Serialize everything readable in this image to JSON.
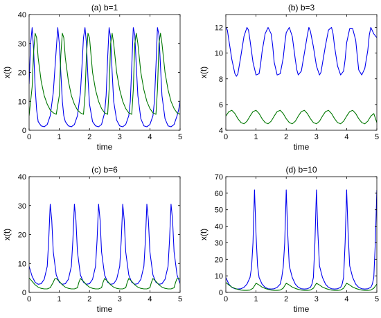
{
  "chart_data": [
    {
      "type": "line",
      "title": "(a) b=1",
      "xlabel": "time",
      "ylabel": "x(t)",
      "xlim": [
        0,
        5
      ],
      "ylim": [
        0,
        40
      ],
      "xticks": [
        0,
        1,
        2,
        3,
        4,
        5
      ],
      "yticks": [
        0,
        10,
        20,
        30,
        40
      ],
      "series": [
        {
          "color": "#0000ee",
          "x": [
            0,
            0.05,
            0.1,
            0.15,
            0.2,
            0.25,
            0.3,
            0.4,
            0.5,
            0.6,
            0.7,
            0.8,
            0.9,
            0.95,
            1.0,
            1.05,
            1.1,
            1.15,
            1.2,
            1.3,
            1.4,
            1.5,
            1.6,
            1.7,
            1.75,
            1.8,
            1.85,
            1.9,
            1.95,
            2.0,
            2.1,
            2.2,
            2.3,
            2.4,
            2.5,
            2.55,
            2.6,
            2.65,
            2.7,
            2.75,
            2.8,
            2.9,
            3.0,
            3.1,
            3.2,
            3.3,
            3.35,
            3.4,
            3.45,
            3.5,
            3.55,
            3.6,
            3.7,
            3.8,
            3.9,
            4.0,
            4.1,
            4.15,
            4.2,
            4.25,
            4.3,
            4.35,
            4.4,
            4.5,
            4.6,
            4.7,
            4.8,
            4.9,
            4.95,
            5.0
          ],
          "y": [
            16,
            30,
            35.5,
            28,
            15,
            7,
            3,
            1.5,
            1.2,
            2,
            5,
            13,
            28,
            35.5,
            30,
            20,
            10,
            5,
            3,
            1.5,
            1.2,
            2,
            5,
            13,
            22,
            32,
            35.5,
            30,
            18,
            9,
            3,
            1.5,
            1.2,
            2,
            6,
            12,
            25,
            35.5,
            32,
            20,
            10,
            3.5,
            1.5,
            1.2,
            2,
            5,
            10,
            22,
            35.5,
            33,
            22,
            12,
            4,
            1.5,
            1.2,
            2,
            5,
            10,
            22,
            35.5,
            33,
            22,
            12,
            4,
            1.5,
            1.2,
            2,
            5,
            7,
            10
          ]
        },
        {
          "color": "#007700",
          "x": [
            0,
            0.1,
            0.15,
            0.2,
            0.25,
            0.3,
            0.4,
            0.5,
            0.6,
            0.7,
            0.8,
            0.9,
            1.0,
            1.05,
            1.1,
            1.15,
            1.2,
            1.3,
            1.4,
            1.5,
            1.6,
            1.7,
            1.8,
            1.85,
            1.9,
            1.95,
            2.0,
            2.1,
            2.2,
            2.3,
            2.4,
            2.5,
            2.6,
            2.65,
            2.7,
            2.75,
            2.8,
            2.9,
            3.0,
            3.1,
            3.2,
            3.3,
            3.4,
            3.45,
            3.5,
            3.55,
            3.6,
            3.7,
            3.8,
            3.9,
            4.0,
            4.1,
            4.2,
            4.25,
            4.3,
            4.35,
            4.4,
            4.5,
            4.6,
            4.7,
            4.8,
            4.9,
            5.0
          ],
          "y": [
            5,
            15,
            27,
            33.5,
            32,
            25,
            17,
            12,
            9,
            7,
            6,
            5.5,
            12,
            26,
            33.5,
            32,
            25,
            17,
            12,
            9,
            7,
            6,
            5.5,
            12,
            26,
            33.5,
            32,
            20,
            14,
            10,
            7.5,
            6,
            5.5,
            14,
            30,
            33.5,
            30,
            20,
            14,
            10,
            7.5,
            6,
            5.5,
            14,
            30,
            33.5,
            30,
            20,
            14,
            10,
            7.5,
            6,
            5.5,
            14,
            30,
            33.5,
            30,
            20,
            14,
            10,
            7.5,
            6,
            5.5
          ]
        }
      ]
    },
    {
      "type": "line",
      "title": "(b) b=3",
      "xlabel": "time",
      "ylabel": "x(t)",
      "xlim": [
        0,
        5
      ],
      "ylim": [
        4,
        13
      ],
      "xticks": [
        0,
        1,
        2,
        3,
        4,
        5
      ],
      "yticks": [
        4,
        6,
        8,
        10,
        12
      ],
      "series": [
        {
          "color": "#0000ee",
          "x": [
            0,
            0.05,
            0.1,
            0.2,
            0.3,
            0.35,
            0.4,
            0.5,
            0.6,
            0.7,
            0.75,
            0.8,
            0.9,
            1.0,
            1.1,
            1.15,
            1.2,
            1.3,
            1.4,
            1.5,
            1.55,
            1.6,
            1.7,
            1.8,
            1.9,
            1.95,
            2.0,
            2.1,
            2.2,
            2.3,
            2.35,
            2.4,
            2.5,
            2.6,
            2.7,
            2.75,
            2.8,
            2.9,
            3.0,
            3.1,
            3.15,
            3.2,
            3.3,
            3.4,
            3.5,
            3.55,
            3.6,
            3.7,
            3.8,
            3.9,
            3.95,
            4.0,
            4.1,
            4.2,
            4.3,
            4.35,
            4.4,
            4.5,
            4.6,
            4.7,
            4.75,
            4.8,
            4.9,
            5.0
          ],
          "y": [
            12,
            11.8,
            11,
            9.5,
            8.4,
            8.2,
            8.4,
            9.8,
            11.3,
            12,
            11.8,
            11,
            9.3,
            8.3,
            8.4,
            9.1,
            10.1,
            11.5,
            12,
            11.5,
            10.6,
            9.3,
            8.3,
            8.4,
            9.6,
            10.7,
            11.6,
            12,
            11.3,
            9.5,
            8.7,
            8.3,
            8.6,
            10,
            11.4,
            12,
            11.7,
            10.5,
            9,
            8.3,
            8.5,
            9.2,
            10.6,
            11.8,
            12,
            11.5,
            10.5,
            9,
            8.3,
            8.6,
            9.5,
            10.8,
            11.9,
            11.9,
            11,
            9.8,
            8.7,
            8.3,
            8.8,
            10.2,
            11.4,
            12,
            11.5,
            11.2
          ]
        },
        {
          "color": "#007700",
          "x": [
            0,
            0.1,
            0.2,
            0.3,
            0.4,
            0.5,
            0.6,
            0.7,
            0.8,
            0.9,
            1.0,
            1.1,
            1.2,
            1.3,
            1.4,
            1.5,
            1.6,
            1.7,
            1.8,
            1.9,
            2.0,
            2.1,
            2.2,
            2.3,
            2.4,
            2.5,
            2.6,
            2.7,
            2.8,
            2.9,
            3.0,
            3.1,
            3.2,
            3.3,
            3.4,
            3.5,
            3.6,
            3.7,
            3.8,
            3.9,
            4.0,
            4.1,
            4.2,
            4.3,
            4.4,
            4.5,
            4.6,
            4.7,
            4.8,
            4.9,
            5.0
          ],
          "y": [
            5.1,
            5.45,
            5.55,
            5.3,
            4.9,
            4.6,
            4.5,
            4.7,
            5.1,
            5.45,
            5.55,
            5.3,
            4.9,
            4.6,
            4.5,
            4.7,
            5.1,
            5.45,
            5.55,
            5.3,
            4.9,
            4.6,
            4.5,
            4.7,
            5.1,
            5.45,
            5.55,
            5.3,
            4.9,
            4.6,
            4.5,
            4.7,
            5.1,
            5.45,
            5.55,
            5.3,
            4.9,
            4.6,
            4.5,
            4.7,
            5.1,
            5.45,
            5.55,
            5.3,
            4.9,
            4.6,
            4.5,
            4.7,
            5.1,
            5.3,
            4.6
          ]
        }
      ]
    },
    {
      "type": "line",
      "title": "(c) b=6",
      "xlabel": "time",
      "ylabel": "x(t)",
      "xlim": [
        0,
        5
      ],
      "ylim": [
        0,
        40
      ],
      "xticks": [
        0,
        1,
        2,
        3,
        4,
        5
      ],
      "yticks": [
        0,
        10,
        20,
        30,
        40
      ],
      "series": [
        {
          "color": "#0000ee",
          "x": [
            0,
            0.1,
            0.2,
            0.3,
            0.4,
            0.5,
            0.6,
            0.65,
            0.7,
            0.75,
            0.8,
            0.9,
            1.0,
            1.1,
            1.2,
            1.3,
            1.4,
            1.45,
            1.5,
            1.55,
            1.6,
            1.7,
            1.8,
            1.9,
            2.0,
            2.1,
            2.2,
            2.25,
            2.3,
            2.35,
            2.4,
            2.5,
            2.6,
            2.7,
            2.8,
            2.9,
            3.0,
            3.05,
            3.1,
            3.15,
            3.2,
            3.3,
            3.4,
            3.5,
            3.6,
            3.7,
            3.8,
            3.85,
            3.9,
            3.95,
            4.0,
            4.1,
            4.2,
            4.3,
            4.4,
            4.5,
            4.6,
            4.65,
            4.7,
            4.75,
            4.8,
            4.9,
            5.0
          ],
          "y": [
            9,
            5.5,
            3.5,
            2.8,
            3,
            4.5,
            9,
            18,
            30.5,
            25,
            14,
            6,
            3.5,
            2.8,
            3,
            4.5,
            9,
            18,
            30.5,
            25,
            14,
            6,
            3.5,
            2.8,
            3,
            4.5,
            9,
            18,
            30.5,
            25,
            14,
            6,
            3.5,
            2.8,
            3,
            4.5,
            9,
            18,
            30.5,
            25,
            14,
            6,
            3.5,
            2.8,
            3,
            4.5,
            9,
            18,
            30.5,
            25,
            14,
            6,
            3.5,
            2.8,
            3,
            4.5,
            9,
            18,
            30.5,
            25,
            14,
            6,
            3
          ]
        },
        {
          "color": "#007700",
          "x": [
            0,
            0.1,
            0.2,
            0.3,
            0.4,
            0.5,
            0.6,
            0.7,
            0.8,
            0.85,
            0.9,
            1.0,
            1.1,
            1.2,
            1.3,
            1.4,
            1.5,
            1.6,
            1.65,
            1.7,
            1.8,
            1.9,
            2.0,
            2.1,
            2.2,
            2.3,
            2.4,
            2.45,
            2.5,
            2.6,
            2.7,
            2.8,
            2.9,
            3.0,
            3.1,
            3.2,
            3.25,
            3.3,
            3.4,
            3.5,
            3.6,
            3.7,
            3.8,
            3.9,
            4.0,
            4.05,
            4.1,
            4.2,
            4.3,
            4.4,
            4.5,
            4.6,
            4.7,
            4.8,
            4.85,
            4.9,
            5.0
          ],
          "y": [
            5,
            3.8,
            2.6,
            1.8,
            1.4,
            1.2,
            1.2,
            1.6,
            3.5,
            4.7,
            4.8,
            3.8,
            2.6,
            1.8,
            1.4,
            1.2,
            1.2,
            1.6,
            3.5,
            4.8,
            3.8,
            2.6,
            1.8,
            1.4,
            1.2,
            1.2,
            1.6,
            3.5,
            4.8,
            3.8,
            2.6,
            1.8,
            1.4,
            1.2,
            1.2,
            1.6,
            3.5,
            4.8,
            3.8,
            2.6,
            1.8,
            1.4,
            1.2,
            1.2,
            1.6,
            3.5,
            4.8,
            3.8,
            2.6,
            1.8,
            1.4,
            1.2,
            1.2,
            1.6,
            3.5,
            4.8,
            4.6
          ]
        }
      ]
    },
    {
      "type": "line",
      "title": "(d) b=10",
      "xlabel": "time",
      "ylabel": "x(t)",
      "xlim": [
        0,
        5
      ],
      "ylim": [
        0,
        70
      ],
      "xticks": [
        0,
        1,
        2,
        3,
        4,
        5
      ],
      "yticks": [
        0,
        10,
        20,
        30,
        40,
        50,
        60,
        70
      ],
      "series": [
        {
          "color": "#0000ee",
          "x": [
            0,
            0.1,
            0.2,
            0.3,
            0.4,
            0.5,
            0.6,
            0.7,
            0.8,
            0.85,
            0.9,
            0.95,
            1.0,
            1.05,
            1.1,
            1.2,
            1.3,
            1.4,
            1.5,
            1.6,
            1.7,
            1.8,
            1.85,
            1.9,
            1.95,
            2.0,
            2.05,
            2.1,
            2.2,
            2.3,
            2.4,
            2.5,
            2.6,
            2.7,
            2.8,
            2.85,
            2.9,
            2.95,
            3.0,
            3.05,
            3.1,
            3.2,
            3.3,
            3.4,
            3.5,
            3.6,
            3.7,
            3.8,
            3.85,
            3.9,
            3.95,
            4.0,
            4.05,
            4.1,
            4.2,
            4.3,
            4.4,
            4.5,
            4.6,
            4.7,
            4.8,
            4.85,
            4.9,
            4.95,
            5.0
          ],
          "y": [
            9,
            5,
            3,
            2.2,
            2,
            2.2,
            3,
            5,
            9,
            15,
            30,
            62,
            35,
            16,
            9,
            5,
            3,
            2.2,
            2,
            2.2,
            3,
            5,
            9,
            15,
            30,
            62,
            35,
            16,
            9,
            5,
            3,
            2.2,
            2,
            2.2,
            3,
            5,
            9,
            30,
            62,
            35,
            16,
            9,
            5,
            3,
            2.2,
            2,
            2.2,
            3,
            5,
            9,
            30,
            62,
            35,
            16,
            9,
            5,
            3,
            2.2,
            2,
            2.2,
            3,
            5,
            9,
            30,
            62
          ]
        },
        {
          "color": "#007700",
          "x": [
            0,
            0.1,
            0.2,
            0.3,
            0.4,
            0.5,
            0.6,
            0.7,
            0.8,
            0.9,
            1.0,
            1.1,
            1.2,
            1.3,
            1.4,
            1.5,
            1.6,
            1.7,
            1.8,
            1.9,
            2.0,
            2.1,
            2.2,
            2.3,
            2.4,
            2.5,
            2.6,
            2.7,
            2.8,
            2.9,
            3.0,
            3.1,
            3.2,
            3.3,
            3.4,
            3.5,
            3.6,
            3.7,
            3.8,
            3.9,
            4.0,
            4.1,
            4.2,
            4.3,
            4.4,
            4.5,
            4.6,
            4.7,
            4.8,
            4.9,
            5.0
          ],
          "y": [
            6,
            4.5,
            3.2,
            2.4,
            1.8,
            1.4,
            1.2,
            1.2,
            1.4,
            2.5,
            5.5,
            4.5,
            3.2,
            2.4,
            1.8,
            1.4,
            1.2,
            1.2,
            1.4,
            2.5,
            5.5,
            4.5,
            3.2,
            2.4,
            1.8,
            1.4,
            1.2,
            1.2,
            1.4,
            2.5,
            5.5,
            4.5,
            3.2,
            2.4,
            1.8,
            1.4,
            1.2,
            1.2,
            1.4,
            2.5,
            5.5,
            4.5,
            3.2,
            2.4,
            1.8,
            1.4,
            1.2,
            1.2,
            1.4,
            2.5,
            5
          ]
        }
      ]
    }
  ]
}
